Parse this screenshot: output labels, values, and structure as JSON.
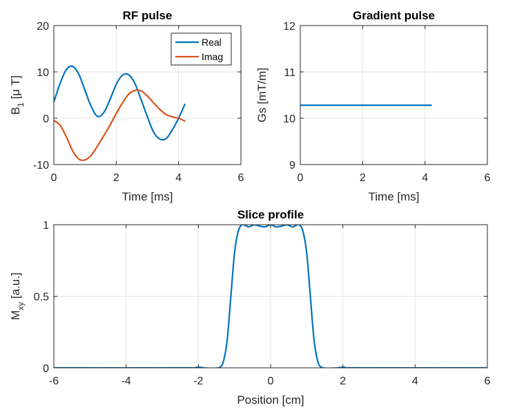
{
  "chart_data": [
    {
      "type": "line",
      "title": "RF pulse",
      "xlabel": "Time [ms]",
      "ylabel": {
        "main": "B",
        "sub": "1",
        "rest": " [μ T]"
      },
      "xlim": [
        0,
        6
      ],
      "ylim": [
        -10,
        20
      ],
      "xticks": [
        0,
        2,
        4,
        6
      ],
      "yticks": [
        -10,
        0,
        10,
        20
      ],
      "grid": true,
      "legend_position": "top-right",
      "series": [
        {
          "name": "Real",
          "color": "#0072BD",
          "x": [
            0,
            0.2,
            0.4,
            0.6,
            0.8,
            1.0,
            1.2,
            1.4,
            1.6,
            1.8,
            2.0,
            2.2,
            2.4,
            2.6,
            2.8,
            3.0,
            3.2,
            3.4,
            3.6,
            3.8,
            4.0,
            4.2
          ],
          "y": [
            3.5,
            7.5,
            10.5,
            11.2,
            9.5,
            6.0,
            2.5,
            0.4,
            1.2,
            4.0,
            7.3,
            9.3,
            9.4,
            7.5,
            4.0,
            0.3,
            -3.0,
            -4.5,
            -4.4,
            -2.5,
            0.0,
            3.0
          ]
        },
        {
          "name": "Imag",
          "color": "#D95319",
          "x": [
            0,
            0.2,
            0.4,
            0.6,
            0.8,
            1.0,
            1.2,
            1.4,
            1.6,
            1.8,
            2.0,
            2.2,
            2.4,
            2.6,
            2.8,
            3.0,
            3.2,
            3.4,
            3.6,
            3.8,
            4.0,
            4.2
          ],
          "y": [
            -0.5,
            -1.5,
            -4.0,
            -7.0,
            -8.8,
            -9.0,
            -8.0,
            -6.0,
            -3.8,
            -1.5,
            1.0,
            3.3,
            5.2,
            6.0,
            5.9,
            4.8,
            3.3,
            1.9,
            0.8,
            0.3,
            0.0,
            -0.6
          ]
        }
      ]
    },
    {
      "type": "line",
      "title": "Gradient pulse",
      "xlabel": "Time [ms]",
      "ylabel": "Gs [mT/m]",
      "xlim": [
        0,
        6
      ],
      "ylim": [
        9,
        12
      ],
      "xticks": [
        0,
        2,
        4,
        6
      ],
      "yticks": [
        9,
        10,
        11,
        12
      ],
      "grid": true,
      "series": [
        {
          "color": "#0072BD",
          "x": [
            0,
            4.2
          ],
          "y": [
            10.28,
            10.28
          ]
        }
      ]
    },
    {
      "type": "line",
      "title": "Slice profile",
      "xlabel": "Position [cm]",
      "ylabel": {
        "main": "M",
        "sub": "xy",
        "rest": " [a.u.]"
      },
      "xlim": [
        -6,
        6
      ],
      "ylim": [
        0,
        1
      ],
      "xticks": [
        -6,
        -4,
        -2,
        0,
        2,
        4,
        6
      ],
      "yticks": [
        0,
        0.5,
        1
      ],
      "grid": true,
      "series": [
        {
          "color": "#0072BD",
          "x": [
            -6,
            -2.2,
            -2.05,
            -1.9,
            -1.6,
            -1.4,
            -1.3,
            -1.2,
            -1.1,
            -1.0,
            -0.9,
            -0.8,
            -0.7,
            -0.6,
            -0.45,
            -0.3,
            -0.15,
            0,
            0.15,
            0.3,
            0.45,
            0.6,
            0.7,
            0.8,
            0.9,
            1.0,
            1.1,
            1.2,
            1.3,
            1.4,
            1.6,
            1.9,
            2.05,
            2.2,
            6
          ],
          "y": [
            0,
            0,
            0.004,
            0,
            -0.003,
            0.005,
            0.05,
            0.2,
            0.5,
            0.8,
            0.95,
            1.0,
            0.995,
            0.985,
            1.0,
            0.99,
            0.985,
            1.0,
            0.985,
            0.99,
            1.0,
            0.985,
            0.995,
            1.0,
            0.95,
            0.8,
            0.5,
            0.2,
            0.05,
            0.005,
            -0.003,
            0,
            0.004,
            0,
            0
          ]
        }
      ]
    }
  ]
}
